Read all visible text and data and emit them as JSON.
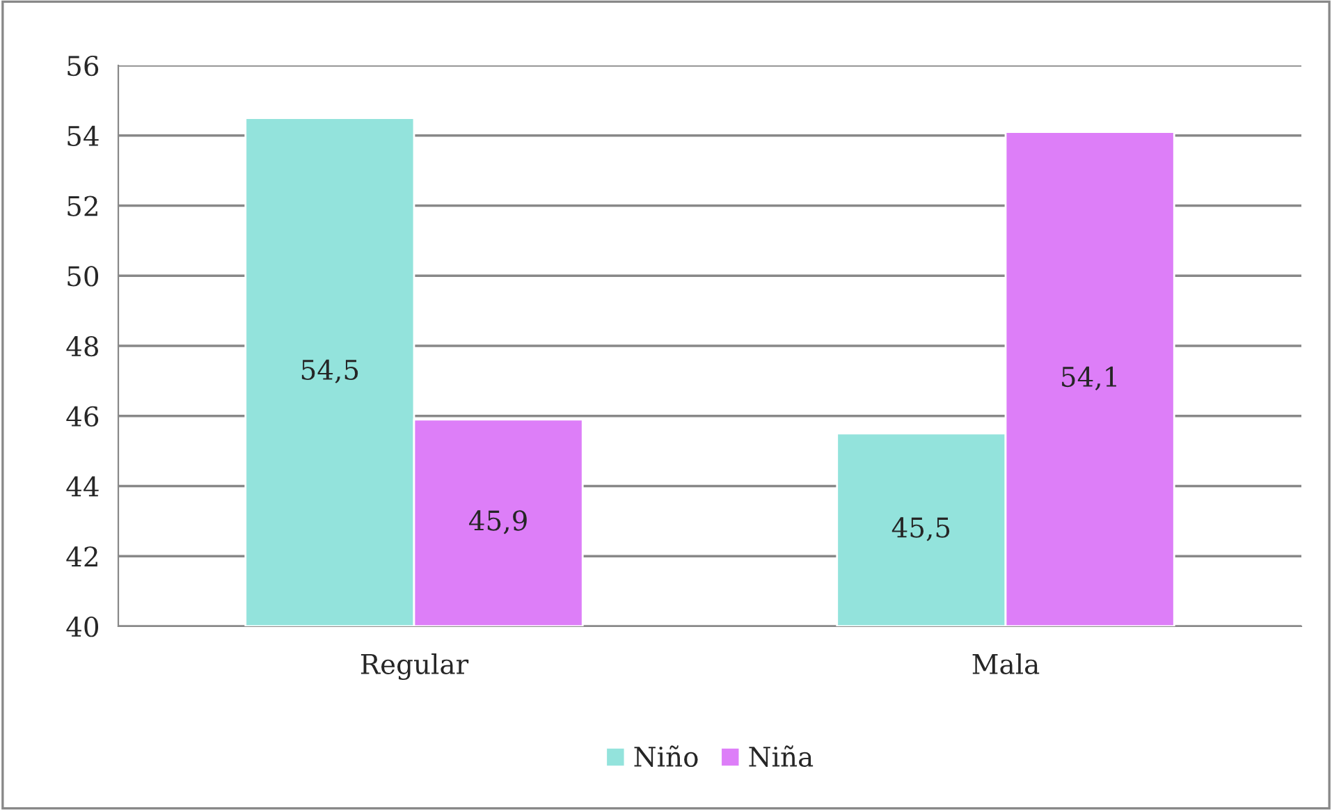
{
  "chart_data": {
    "type": "bar",
    "categories": [
      "Regular",
      "Mala"
    ],
    "series": [
      {
        "name": "Niño",
        "color": "#93e3dc",
        "values": [
          54.5,
          45.5
        ],
        "value_labels": [
          "54,5",
          "45,5"
        ]
      },
      {
        "name": "Niña",
        "color": "#dd7ef8",
        "values": [
          45.9,
          54.1
        ],
        "value_labels": [
          "45,9",
          "54,1"
        ]
      }
    ],
    "ylim": [
      40,
      56
    ],
    "yticks": [
      40,
      42,
      44,
      46,
      48,
      50,
      52,
      54,
      56
    ],
    "grid": "y",
    "legend": "bottom"
  }
}
